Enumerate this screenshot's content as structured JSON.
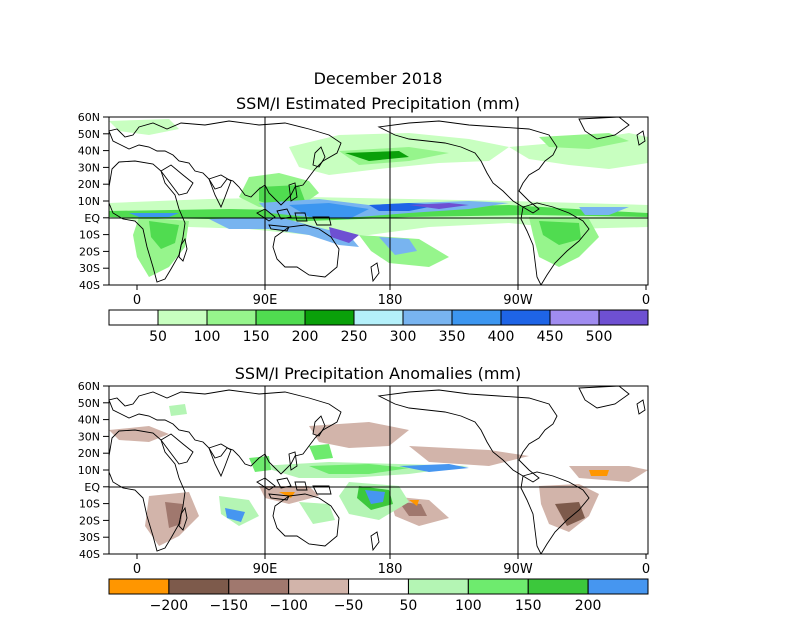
{
  "figure": {
    "month_title": "December 2018"
  },
  "top_panel": {
    "title": "SSM/I Estimated Precipitation (mm)",
    "lat_labels": [
      "60N",
      "50N",
      "40N",
      "30N",
      "20N",
      "10N",
      "EQ",
      "10S",
      "20S",
      "30S",
      "40S"
    ],
    "lon_labels": [
      "0",
      "90E",
      "180",
      "90W",
      "0"
    ],
    "colorbar": {
      "colors": [
        "#ffffff",
        "#c8ffc0",
        "#96f58c",
        "#50dc50",
        "#0aa00a",
        "#b4f0fa",
        "#78b4f0",
        "#3c96f0",
        "#1e64e6",
        "#a08cf0",
        "#6e50d2"
      ],
      "labels": [
        "50",
        "100",
        "150",
        "200",
        "250",
        "300",
        "350",
        "400",
        "450",
        "500"
      ]
    }
  },
  "bottom_panel": {
    "title": "SSM/I Precipitation Anomalies (mm)",
    "lat_labels": [
      "60N",
      "50N",
      "40N",
      "30N",
      "20N",
      "10N",
      "EQ",
      "10S",
      "20S",
      "30S",
      "40S"
    ],
    "lon_labels": [
      "0",
      "90E",
      "180",
      "90W",
      "0"
    ],
    "colorbar": {
      "colors": [
        "#ff9600",
        "#7d5a4b",
        "#a0786e",
        "#d2b4aa",
        "#ffffff",
        "#b4f5b4",
        "#6eeb6e",
        "#3cc83c",
        "#4696f0"
      ],
      "labels": [
        "−200",
        "−150",
        "−100",
        "−50",
        "50",
        "100",
        "150",
        "200"
      ]
    }
  }
}
